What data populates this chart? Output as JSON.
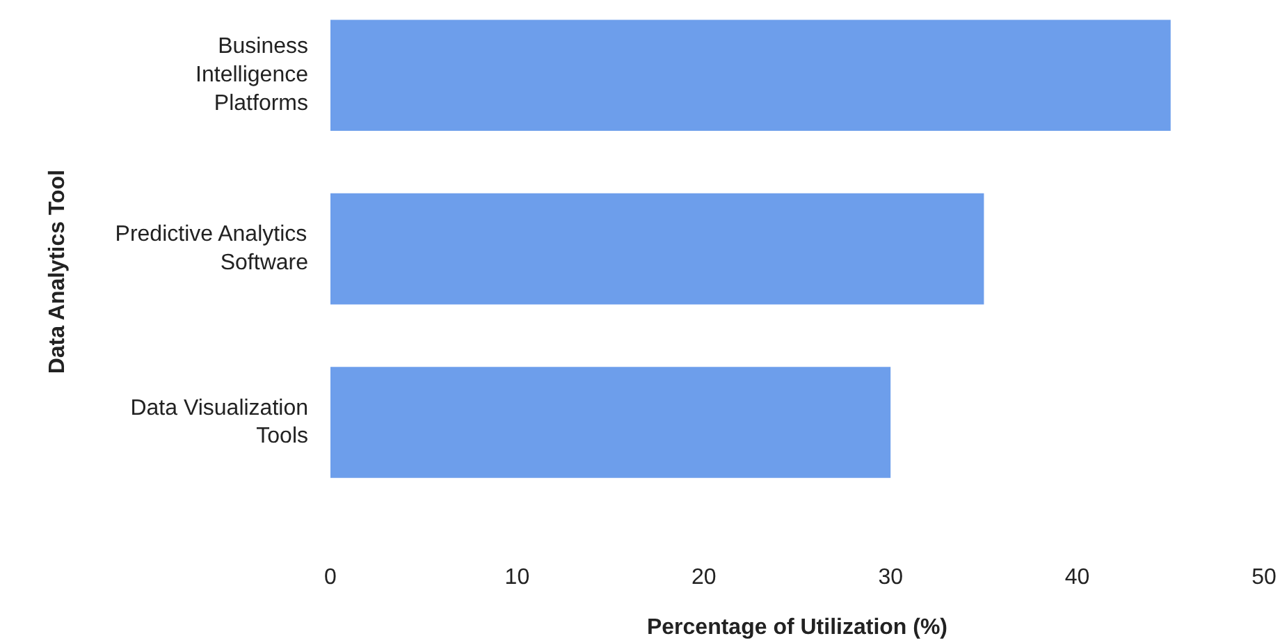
{
  "chart_data": {
    "type": "bar",
    "orientation": "horizontal",
    "xlabel": "Percentage of Utilization (%)",
    "ylabel": "Data Analytics Tool",
    "categories": [
      "Business Intelligence Platforms",
      "Predictive Analytics Software",
      "Data Visualization Tools"
    ],
    "values": [
      45,
      35,
      30
    ],
    "color": "#6d9eeb",
    "xlim": [
      0,
      50
    ],
    "xticks": [
      0,
      10,
      20,
      30,
      40,
      50
    ],
    "grid": false
  }
}
